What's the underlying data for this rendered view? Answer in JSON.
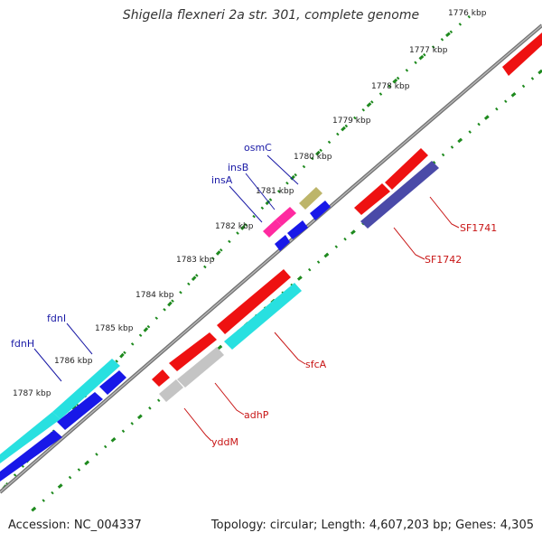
{
  "title": "Shigella flexneri 2a str. 301, complete genome",
  "footer": {
    "accession": "Accession: NC_004337",
    "summary": "Topology: circular; Length: 4,607,203 bp; Genes: 4,305"
  },
  "colors": {
    "backbone": "#888888",
    "tick_ring": "#1e8a1e",
    "label_forward": "#1a1aa6",
    "label_reverse": "#c81414",
    "leader": "#333333"
  },
  "ticks": [
    "1776 kbp",
    "1777 kbp",
    "1778 kbp",
    "1779 kbp",
    "1780 kbp",
    "1781 kbp",
    "1782 kbp",
    "1783 kbp",
    "1784 kbp",
    "1785 kbp",
    "1786 kbp",
    "1787 kbp"
  ],
  "labels": [
    {
      "id": "osmC",
      "text": "osmC",
      "strand": "forward"
    },
    {
      "id": "insB",
      "text": "insB",
      "strand": "forward"
    },
    {
      "id": "insA",
      "text": "insA",
      "strand": "forward"
    },
    {
      "id": "fdnI",
      "text": "fdnI",
      "strand": "forward"
    },
    {
      "id": "fdnH",
      "text": "fdnH",
      "strand": "forward"
    },
    {
      "id": "SF1741",
      "text": "SF1741",
      "strand": "reverse"
    },
    {
      "id": "SF1742",
      "text": "SF1742",
      "strand": "reverse"
    },
    {
      "id": "sfcA",
      "text": "sfcA",
      "strand": "reverse"
    },
    {
      "id": "adhP",
      "text": "adhP",
      "strand": "reverse"
    },
    {
      "id": "yddM",
      "text": "yddM",
      "strand": "reverse"
    }
  ]
}
